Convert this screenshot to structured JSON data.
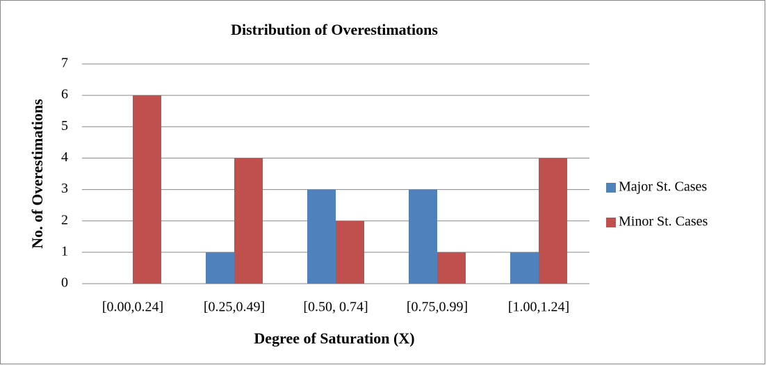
{
  "chart_data": {
    "type": "bar",
    "title": "Distribution of Overestimations",
    "x_label": "Degree of Saturation (X)",
    "y_label": "No. of Overestimations",
    "categories": [
      "[0.00,0.24]",
      "[0.25,0.49]",
      "[0.50, 0.74]",
      "[0.75,0.99]",
      "[1.00,1.24]"
    ],
    "series": [
      {
        "name": "Major St. Cases",
        "color": "#4f81bd",
        "values": [
          0,
          1,
          3,
          3,
          1
        ]
      },
      {
        "name": "Minor St. Cases",
        "color": "#c0504d",
        "values": [
          6,
          4,
          2,
          1,
          4
        ]
      }
    ],
    "ylim": [
      0,
      7
    ],
    "yticks": [
      0,
      1,
      2,
      3,
      4,
      5,
      6,
      7
    ],
    "grid": true,
    "legend": "right"
  }
}
